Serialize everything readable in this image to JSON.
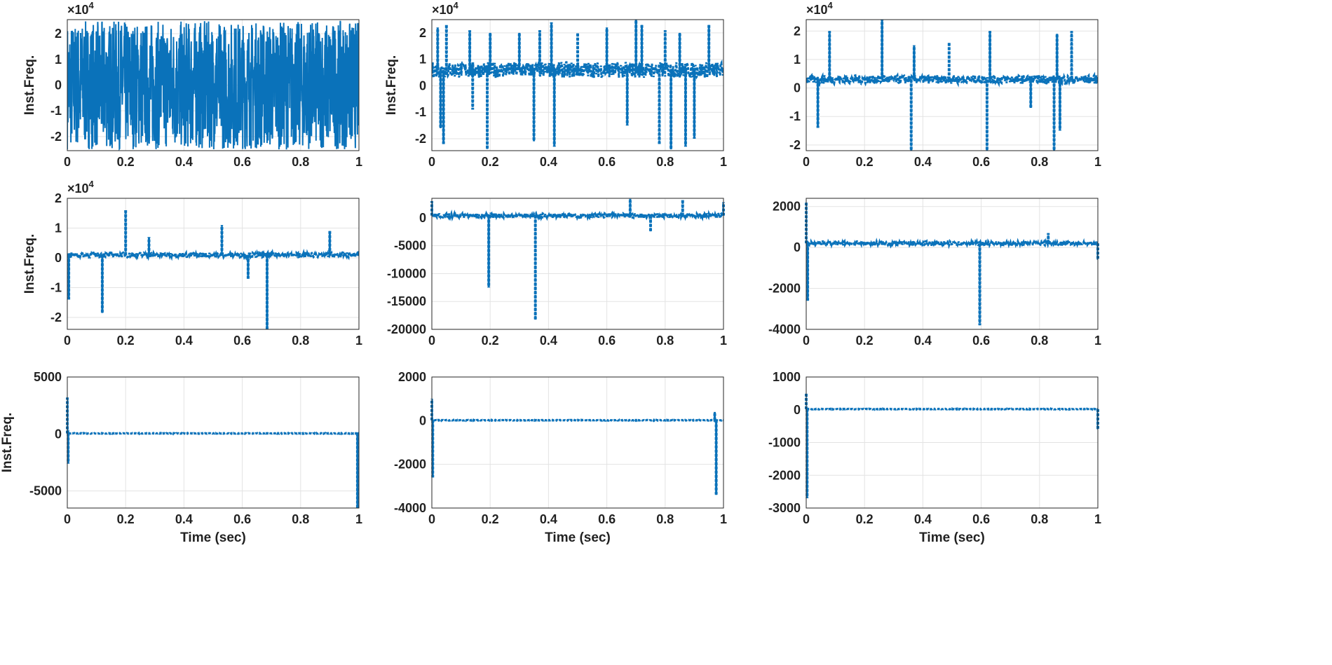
{
  "chart_data": [
    {
      "type": "line",
      "ylabel": "Inst.Freq.",
      "xlabel": "",
      "exponent": "4",
      "ylim": [
        -25500,
        25500
      ],
      "yticks": [
        -20000,
        -10000,
        0,
        10000,
        20000
      ],
      "yticklabels": [
        "-2",
        "-1",
        "0",
        "1",
        "2"
      ],
      "base": 0,
      "noise": 25000,
      "dense": true,
      "spikes": []
    },
    {
      "type": "line",
      "ylabel": "Inst.Freq.",
      "xlabel": "",
      "exponent": "4",
      "ylim": [
        -24500,
        25000
      ],
      "yticks": [
        -20000,
        -10000,
        0,
        10000,
        20000
      ],
      "yticklabels": [
        "-2",
        "-1",
        "0",
        "1",
        "2"
      ],
      "base": 6000,
      "noise": 3000,
      "spikes": [
        [
          0.02,
          22000
        ],
        [
          0.05,
          23000
        ],
        [
          0.13,
          21000
        ],
        [
          0.2,
          20000
        ],
        [
          0.3,
          20000
        ],
        [
          0.37,
          21000
        ],
        [
          0.41,
          24000
        ],
        [
          0.5,
          20000
        ],
        [
          0.6,
          22000
        ],
        [
          0.7,
          25000
        ],
        [
          0.72,
          23000
        ],
        [
          0.8,
          21000
        ],
        [
          0.85,
          20000
        ],
        [
          0.95,
          23000
        ],
        [
          0.04,
          -22000
        ],
        [
          0.03,
          -16000
        ],
        [
          0.19,
          -24000
        ],
        [
          0.14,
          -9000
        ],
        [
          0.42,
          -23000
        ],
        [
          0.35,
          -21000
        ],
        [
          0.67,
          -15000
        ],
        [
          0.78,
          -22000
        ],
        [
          0.82,
          -24000
        ],
        [
          0.87,
          -23000
        ],
        [
          0.9,
          -20000
        ]
      ]
    },
    {
      "type": "line",
      "ylabel": "",
      "xlabel": "",
      "exponent": "4",
      "ylim": [
        -22000,
        24000
      ],
      "yticks": [
        -20000,
        -10000,
        0,
        10000,
        20000
      ],
      "yticklabels": [
        "-2",
        "-1",
        "0",
        "1",
        "2"
      ],
      "base": 3000,
      "noise": 1500,
      "spikes": [
        [
          0.08,
          20000
        ],
        [
          0.26,
          24000
        ],
        [
          0.63,
          20000
        ],
        [
          0.86,
          19000
        ],
        [
          0.91,
          20000
        ],
        [
          0.37,
          15000
        ],
        [
          0.49,
          16000
        ],
        [
          0.04,
          -14000
        ],
        [
          0.36,
          -22000
        ],
        [
          0.62,
          -22000
        ],
        [
          0.77,
          -7000
        ],
        [
          0.85,
          -22000
        ],
        [
          0.87,
          -15000
        ]
      ]
    },
    {
      "type": "line",
      "ylabel": "Inst.Freq.",
      "xlabel": "",
      "exponent": "4",
      "ylim": [
        -24000,
        20000
      ],
      "yticks": [
        -20000,
        -10000,
        0,
        10000,
        20000
      ],
      "yticklabels": [
        "-2",
        "-1",
        "0",
        "1",
        "2"
      ],
      "base": 1000,
      "noise": 800,
      "spikes": [
        [
          0.2,
          16000
        ],
        [
          0.53,
          11000
        ],
        [
          0.28,
          7000
        ],
        [
          0.9,
          9000
        ],
        [
          0.12,
          -18500
        ],
        [
          0.685,
          -24000
        ],
        [
          0.62,
          -7000
        ],
        [
          0.005,
          -14000
        ]
      ]
    },
    {
      "type": "line",
      "ylabel": "",
      "xlabel": "",
      "exponent": "",
      "ylim": [
        -20000,
        3500
      ],
      "yticks": [
        -20000,
        -15000,
        -10000,
        -5000,
        0
      ],
      "yticklabels": [
        "-20000",
        "-15000",
        "-10000",
        "-5000",
        "0"
      ],
      "base": 400,
      "noise": 400,
      "spikes": [
        [
          0.195,
          -12500
        ],
        [
          0.355,
          -18300
        ],
        [
          0.68,
          3500
        ],
        [
          0.86,
          3200
        ],
        [
          0.75,
          -2500
        ],
        [
          0.0,
          3000
        ],
        [
          1.0,
          2800
        ]
      ]
    },
    {
      "type": "line",
      "ylabel": "",
      "xlabel": "",
      "exponent": "",
      "ylim": [
        -4000,
        2400
      ],
      "yticks": [
        -4000,
        -2000,
        0,
        2000
      ],
      "yticklabels": [
        "-4000",
        "-2000",
        "0",
        "2000"
      ],
      "base": 200,
      "noise": 100,
      "spikes": [
        [
          0.0,
          2200
        ],
        [
          0.005,
          -2600
        ],
        [
          0.595,
          -3800
        ],
        [
          0.83,
          700
        ],
        [
          1.0,
          -600
        ]
      ]
    },
    {
      "type": "line",
      "ylabel": "Inst.Freq.",
      "xlabel": "Time (sec)",
      "exponent": "",
      "ylim": [
        -6500,
        5000
      ],
      "yticks": [
        -5000,
        0,
        5000
      ],
      "yticklabels": [
        "-5000",
        "0",
        "5000"
      ],
      "base": 50,
      "noise": 30,
      "spikes": [
        [
          0.0,
          3200
        ],
        [
          0.003,
          -2600
        ],
        [
          0.995,
          -6500
        ]
      ]
    },
    {
      "type": "line",
      "ylabel": "",
      "xlabel": "Time (sec)",
      "exponent": "",
      "ylim": [
        -4000,
        2000
      ],
      "yticks": [
        -4000,
        -2000,
        0,
        2000
      ],
      "yticklabels": [
        "-4000",
        "-2000",
        "0",
        "2000"
      ],
      "base": 20,
      "noise": 15,
      "spikes": [
        [
          0.0,
          1000
        ],
        [
          0.003,
          -2600
        ],
        [
          0.975,
          -3400
        ],
        [
          0.97,
          400
        ]
      ]
    },
    {
      "type": "line",
      "ylabel": "",
      "xlabel": "Time (sec)",
      "exponent": "",
      "ylim": [
        -3000,
        1000
      ],
      "yticks": [
        -3000,
        -2000,
        -1000,
        0,
        1000
      ],
      "yticklabels": [
        "-3000",
        "-2000",
        "-1000",
        "0",
        "1000"
      ],
      "base": 20,
      "noise": 10,
      "spikes": [
        [
          0.0,
          500
        ],
        [
          0.003,
          -2700
        ],
        [
          1.0,
          -600
        ]
      ]
    }
  ],
  "xticklabels": [
    "0",
    "0.2",
    "0.4",
    "0.6",
    "0.8",
    "1"
  ],
  "color": "#0a72ba"
}
